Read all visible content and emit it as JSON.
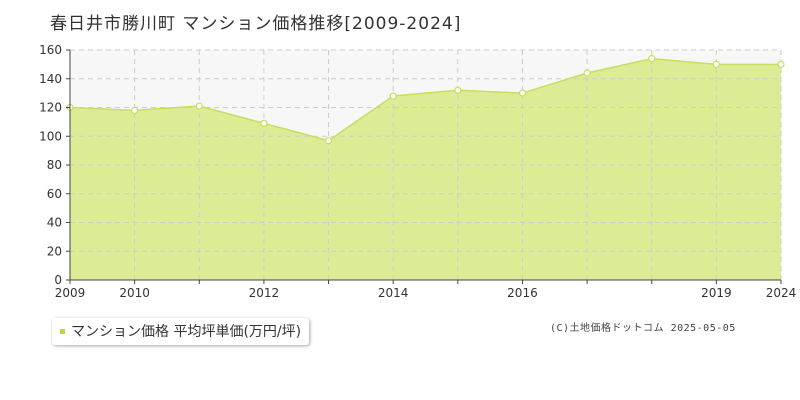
{
  "title": "春日井市勝川町 マンション価格推移[2009-2024]",
  "legend": {
    "label": "マンション価格 平均坪単価(万円/坪)",
    "color": "#b8d84a"
  },
  "credit": "(C)土地価格ドットコム 2025-05-05",
  "colors": {
    "area_fill": "#dcec94",
    "line": "#c5e05c",
    "grid": "#cccccc",
    "upper_band": "#f7f7f7"
  },
  "chart_data": {
    "type": "area",
    "x": [
      2009,
      2010,
      2011,
      2012,
      2013,
      2014,
      2015,
      2016,
      2017,
      2018,
      2019,
      2024
    ],
    "series": [
      {
        "name": "マンション価格 平均坪単価(万円/坪)",
        "values": [
          120,
          118,
          121,
          109,
          97,
          128,
          132,
          130,
          144,
          154,
          150,
          150
        ]
      }
    ],
    "x_ticks": [
      2009,
      2010,
      2011,
      2012,
      2013,
      2014,
      2015,
      2016,
      2017,
      2018,
      2019,
      2024
    ],
    "x_tick_labels": [
      "2009",
      "2010",
      "",
      "2012",
      "",
      "2014",
      "",
      "2016",
      "",
      "",
      "2019",
      "2024"
    ],
    "y_ticks": [
      0,
      20,
      40,
      60,
      80,
      100,
      120,
      140,
      160
    ],
    "ylim": [
      0,
      160
    ],
    "grid": true
  }
}
